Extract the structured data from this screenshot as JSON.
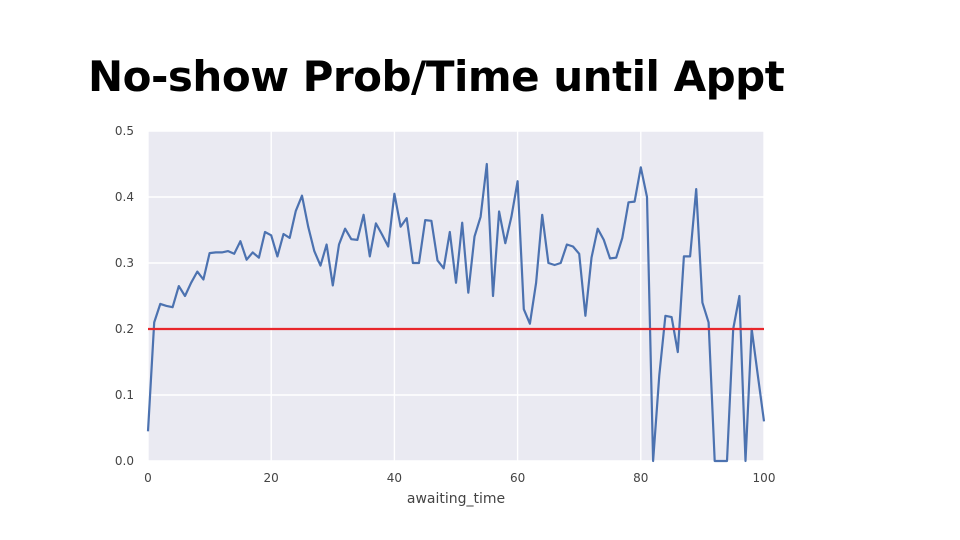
{
  "slide": {
    "title": "No-show Prob/Time until Appt"
  },
  "chart_data": {
    "type": "line",
    "title": "",
    "xlabel": "awaiting_time",
    "ylabel": "",
    "xlim": [
      0,
      100
    ],
    "ylim": [
      0,
      0.5
    ],
    "xticks": [
      "0",
      "20",
      "40",
      "60",
      "80",
      "100"
    ],
    "yticks": [
      "0.0",
      "0.1",
      "0.2",
      "0.3",
      "0.4",
      "0.5"
    ],
    "grid": true,
    "background_color": "#eaeaf2",
    "series": [
      {
        "color": "#4c72b0",
        "x": [
          0,
          1,
          2,
          3,
          4,
          5,
          6,
          7,
          8,
          9,
          10,
          11,
          12,
          13,
          14,
          15,
          16,
          17,
          18,
          19,
          20,
          21,
          22,
          23,
          24,
          25,
          26,
          27,
          28,
          29,
          30,
          31,
          32,
          33,
          34,
          35,
          36,
          37,
          38,
          39,
          40,
          41,
          42,
          43,
          44,
          45,
          46,
          47,
          48,
          49,
          50,
          51,
          52,
          53,
          54,
          55,
          56,
          57,
          58,
          59,
          60,
          61,
          62,
          63,
          64,
          65,
          66,
          67,
          68,
          69,
          70,
          71,
          72,
          73,
          74,
          75,
          76,
          77,
          78,
          79,
          80,
          81,
          82,
          83,
          84,
          85,
          86,
          87,
          88,
          89,
          90,
          91,
          92,
          93,
          94,
          95,
          96,
          97,
          98,
          99,
          100
        ],
        "values": [
          0.045,
          0.21,
          0.238,
          0.235,
          0.233,
          0.265,
          0.25,
          0.27,
          0.287,
          0.275,
          0.315,
          0.316,
          0.316,
          0.318,
          0.314,
          0.333,
          0.305,
          0.316,
          0.308,
          0.347,
          0.342,
          0.31,
          0.344,
          0.338,
          0.379,
          0.402,
          0.355,
          0.318,
          0.296,
          0.328,
          0.266,
          0.328,
          0.352,
          0.336,
          0.335,
          0.373,
          0.31,
          0.36,
          0.343,
          0.325,
          0.405,
          0.355,
          0.368,
          0.3,
          0.3,
          0.365,
          0.364,
          0.304,
          0.292,
          0.347,
          0.27,
          0.361,
          0.255,
          0.34,
          0.37,
          0.45,
          0.25,
          0.378,
          0.33,
          0.37,
          0.424,
          0.23,
          0.208,
          0.27,
          0.373,
          0.3,
          0.297,
          0.3,
          0.328,
          0.325,
          0.314,
          0.22,
          0.308,
          0.352,
          0.335,
          0.307,
          0.308,
          0.338,
          0.392,
          0.393,
          0.445,
          0.4,
          0.0,
          0.13,
          0.22,
          0.218,
          0.165,
          0.31,
          0.31,
          0.412,
          0.24,
          0.21,
          0.0,
          0.0,
          0.0,
          0.2,
          0.25,
          0.0,
          0.2,
          0.13,
          0.06
        ]
      }
    ],
    "reference_line": {
      "y": 0.2,
      "color": "#e8262b"
    }
  }
}
